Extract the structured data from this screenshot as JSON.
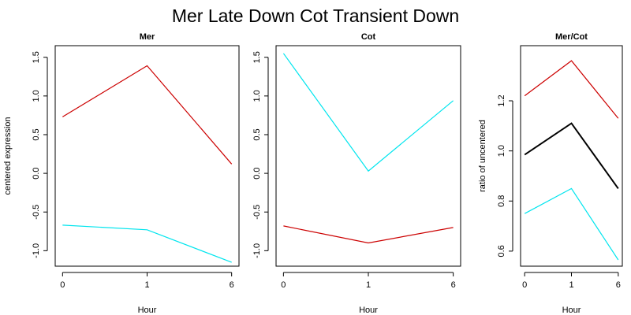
{
  "title": "Mer Late Down Cot Transient Down",
  "colors": {
    "red": "#cc0000",
    "cyan": "#00e5ee",
    "black": "#000000"
  },
  "chart_data": [
    {
      "type": "line",
      "title": "Mer",
      "xlabel": "Hour",
      "ylabel": "centered expression",
      "categories": [
        "0",
        "1",
        "6"
      ],
      "ylim": [
        -1.2,
        1.65
      ],
      "yticks": [
        1.5,
        1.0,
        0.5,
        0.0,
        -0.5,
        -1.0
      ],
      "ytick_labels": [
        "1.5",
        "1.0",
        "0.5",
        "0.0",
        "-0.5",
        "-1.0"
      ],
      "series": [
        {
          "color": "#cc0000",
          "values": [
            0.73,
            1.39,
            0.12
          ]
        },
        {
          "color": "#00e5ee",
          "values": [
            -0.67,
            -0.73,
            -1.15
          ]
        }
      ]
    },
    {
      "type": "line",
      "title": "Cot",
      "xlabel": "Hour",
      "ylabel": "",
      "categories": [
        "0",
        "1",
        "6"
      ],
      "ylim": [
        -1.2,
        1.65
      ],
      "yticks": [
        1.5,
        1.0,
        0.5,
        0.0,
        -0.5,
        -1.0
      ],
      "ytick_labels": [
        "1.5",
        "1.0",
        "0.5",
        "0.0",
        "-0.5",
        "-1.0"
      ],
      "series": [
        {
          "color": "#00e5ee",
          "values": [
            1.55,
            0.03,
            0.94
          ]
        },
        {
          "color": "#cc0000",
          "values": [
            -0.68,
            -0.9,
            -0.7
          ]
        }
      ]
    },
    {
      "type": "line",
      "title": "Mer/Cot",
      "xlabel": "Hour",
      "ylabel": "ratio of uncentered",
      "categories": [
        "0",
        "1",
        "6"
      ],
      "ylim": [
        0.54,
        1.42
      ],
      "yticks": [
        1.2,
        1.0,
        0.8,
        0.6
      ],
      "ytick_labels": [
        "1.2",
        "1.0",
        "0.8",
        "0.6"
      ],
      "series": [
        {
          "color": "#cc0000",
          "values": [
            1.22,
            1.36,
            1.13
          ]
        },
        {
          "color": "#000000",
          "values": [
            0.985,
            1.11,
            0.85
          ]
        },
        {
          "color": "#00e5ee",
          "values": [
            0.75,
            0.85,
            0.565
          ]
        }
      ]
    }
  ]
}
